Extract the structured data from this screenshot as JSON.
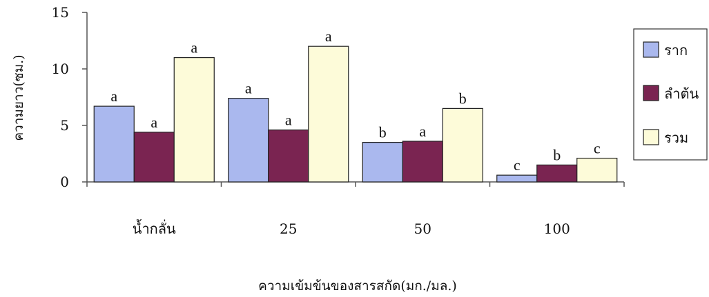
{
  "chart_data": {
    "type": "bar",
    "title": "",
    "xlabel": "ความเข้มข้นของสารสกัด(มก./มล.)",
    "ylabel": "ความยาว(ซม.)",
    "ylim": [
      0,
      15
    ],
    "yticks": [
      0,
      5,
      10,
      15
    ],
    "grid": false,
    "legend_position": "right",
    "categories": [
      "น้ำกลั่น",
      "25",
      "50",
      "100"
    ],
    "series": [
      {
        "name": "ราก",
        "color": "#aab8ee",
        "values": [
          6.7,
          7.4,
          3.5,
          0.6
        ],
        "labels": [
          "a",
          "a",
          "b",
          "c"
        ]
      },
      {
        "name": "ลำต้น",
        "color": "#7a2451",
        "values": [
          4.4,
          4.6,
          3.6,
          1.5
        ],
        "labels": [
          "a",
          "a",
          "a",
          "b"
        ]
      },
      {
        "name": "รวม",
        "color": "#fdfbd9",
        "values": [
          11.0,
          12.0,
          6.5,
          2.1
        ],
        "labels": [
          "a",
          "a",
          "b",
          "c"
        ]
      }
    ]
  }
}
